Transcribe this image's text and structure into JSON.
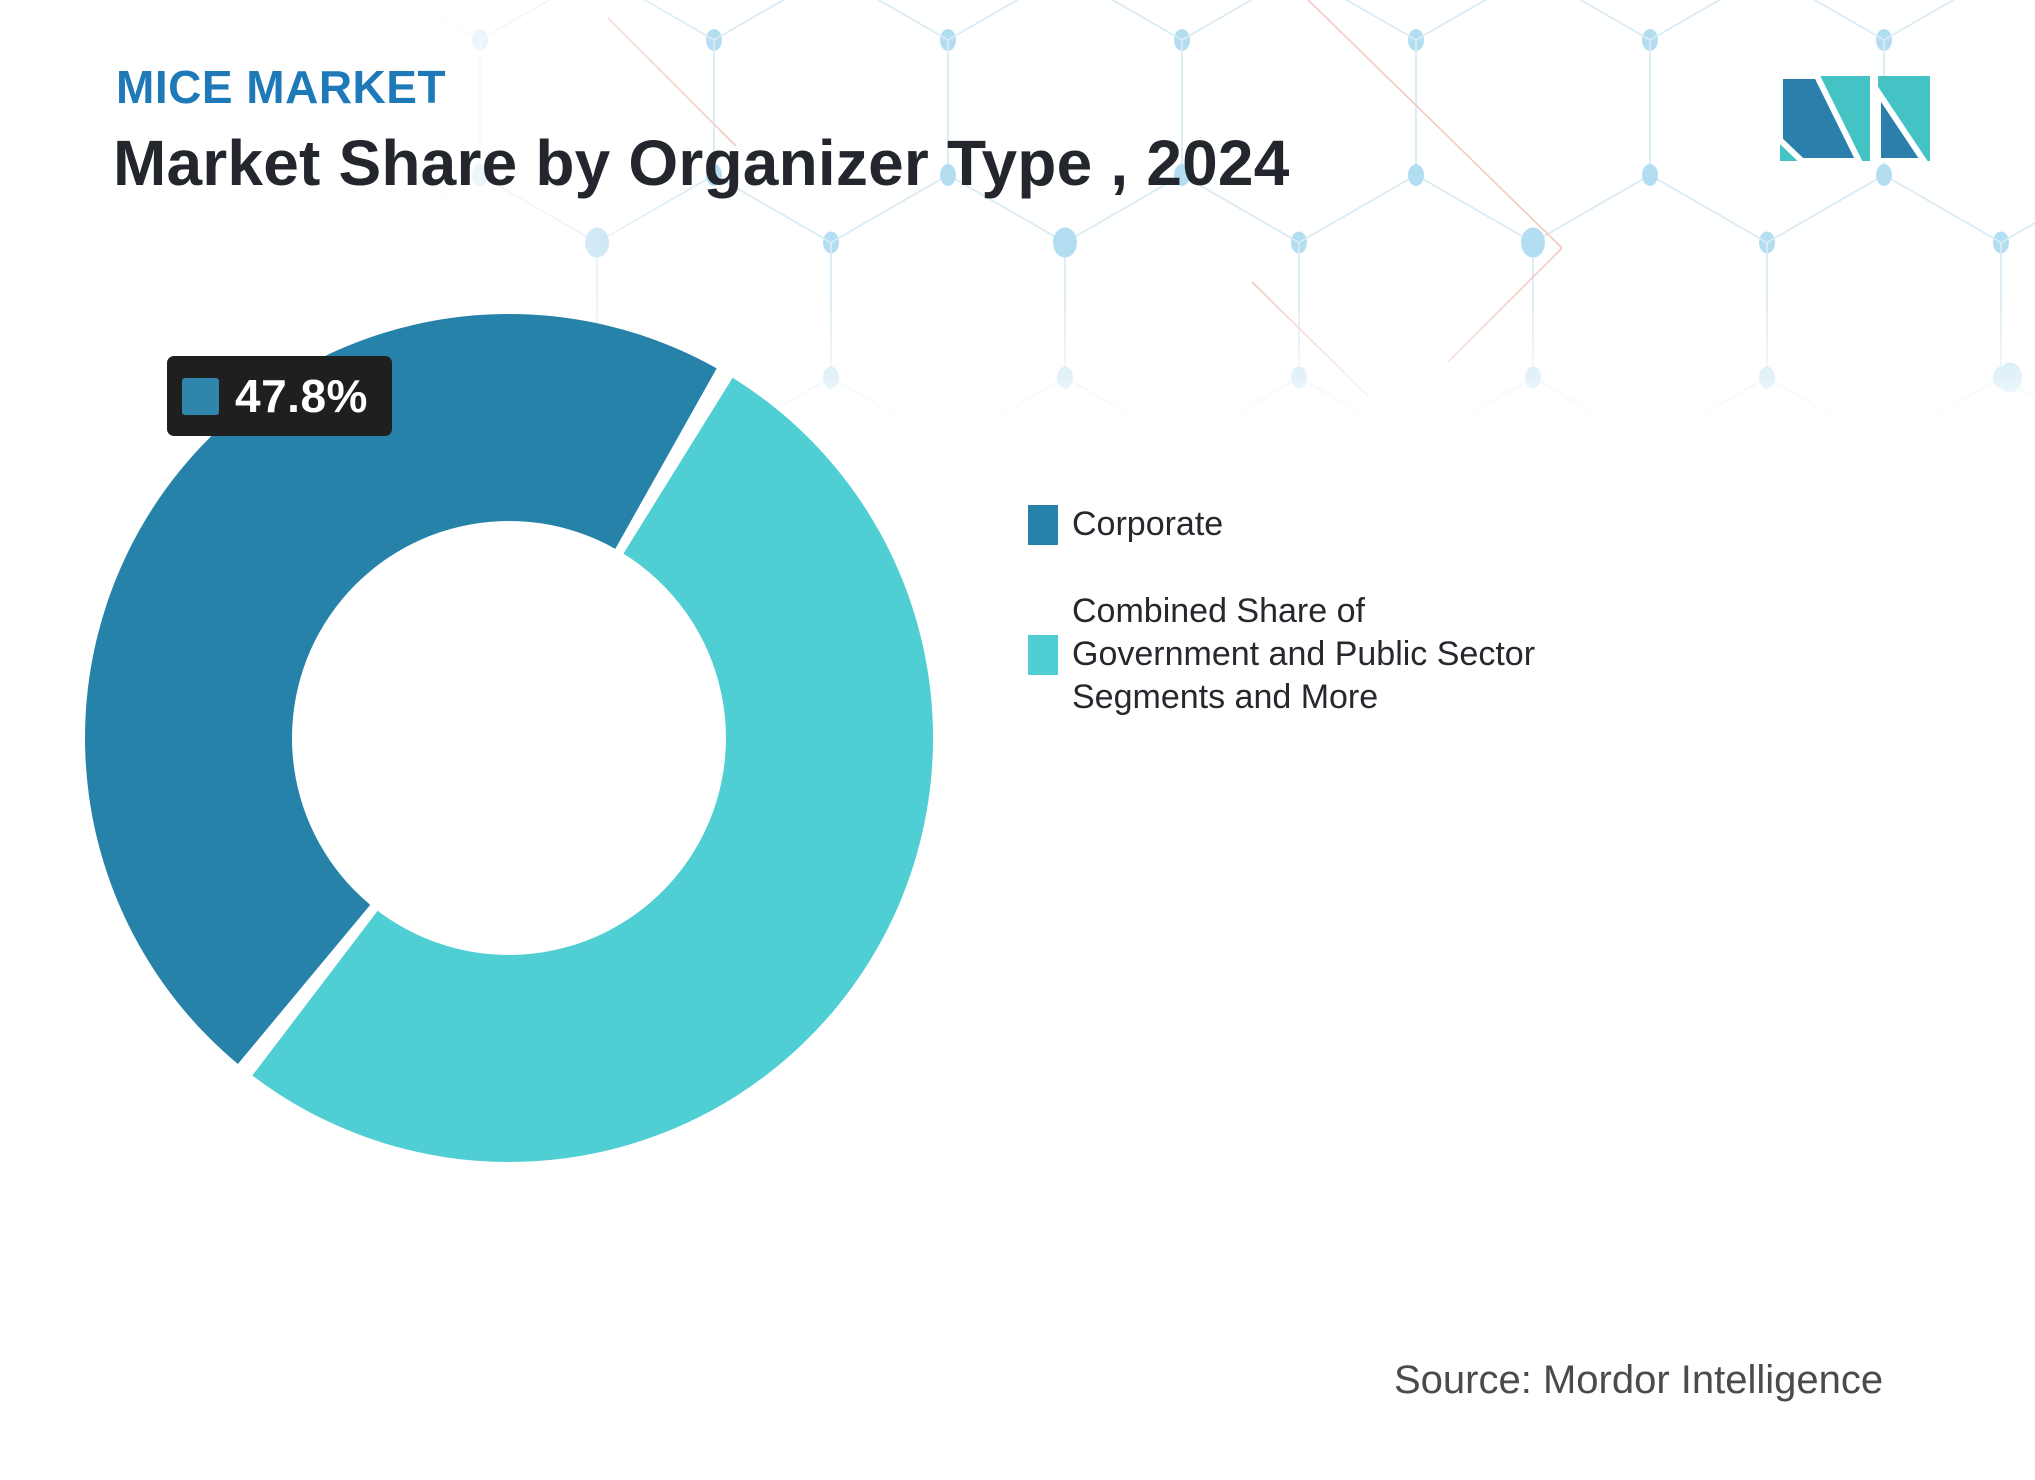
{
  "header": {
    "brand": "MICE MARKET",
    "title": "Market Share by Organizer Type , 2024"
  },
  "chart_data": {
    "type": "pie",
    "subtype": "donut",
    "title": "Market Share by Organizer Type , 2024",
    "categories": [
      "Corporate",
      "Combined Share of Government and Public Sector Segments and More"
    ],
    "values": [
      47.8,
      52.2
    ],
    "colors": [
      "#2682a9",
      "#4fced3"
    ],
    "data_labels": [
      {
        "category": "Corporate",
        "text": "47.8%"
      }
    ],
    "layout": {
      "start_angle": 218.5,
      "gap_degrees": 2.5,
      "outer_radius": 424,
      "inner_radius": 217,
      "legend_position": "right",
      "grid": false
    }
  },
  "callout": {
    "value": "47.8%",
    "swatch_color": "#2e86ad"
  },
  "legend": {
    "items": [
      {
        "label": "Corporate",
        "color": "#2682a9"
      },
      {
        "label": "Combined Share of Government and Public Sector Segments and More",
        "color": "#4fced3"
      }
    ]
  },
  "source": {
    "text": "Source: Mordor Intelligence"
  },
  "logo": {
    "name": "mordor-intelligence-logo",
    "colors": {
      "blue": "#2b80ab",
      "teal": "#45c2c4"
    }
  },
  "background": {
    "pattern": "hexagon-mesh",
    "line_color": "#d9ecf5",
    "dot_color": "#b3ddf1",
    "accent_line_color": "#f3c9c0"
  }
}
